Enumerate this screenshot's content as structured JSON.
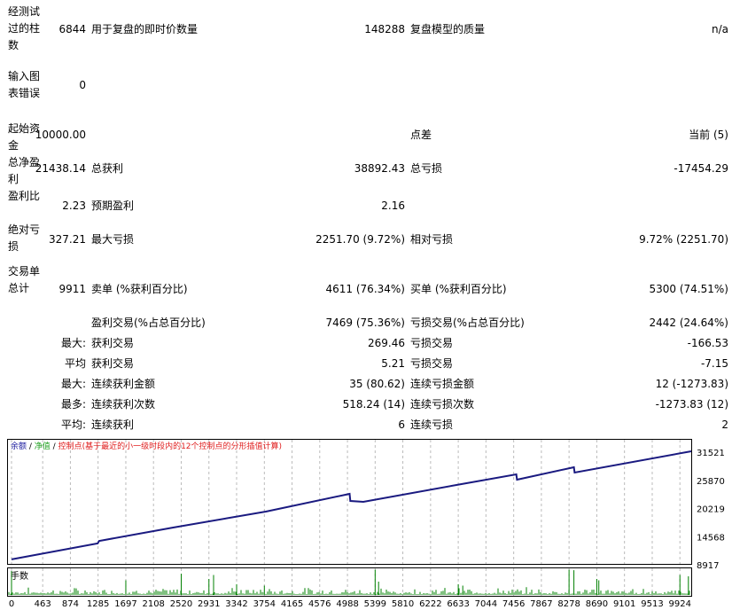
{
  "report": {
    "bars": {
      "label": "经测试过的柱数",
      "value": "6844",
      "l2": "用于复盘的即时价数量",
      "v2": "148288",
      "l3": "复盘模型的质量",
      "v3": "n/a"
    },
    "errors": {
      "label": "输入图表错误",
      "value": "0"
    },
    "deposit": {
      "label": "起始资金",
      "value": "10000.00",
      "l3": "点差",
      "v3": "当前 (5)"
    },
    "net": {
      "label": "总净盈利",
      "value": "21438.14",
      "l2": "总获利",
      "v2": "38892.43",
      "l3": "总亏损",
      "v3": "-17454.29"
    },
    "pf": {
      "label": "盈利比",
      "value": "2.23",
      "l2": "预期盈利",
      "v2": "2.16"
    },
    "dd": {
      "label": "绝对亏损",
      "value": "327.21",
      "l2": "最大亏损",
      "v2": "2251.70 (9.72%)",
      "l3": "相对亏损",
      "v3": "9.72% (2251.70)"
    },
    "trades": {
      "label": "交易单总计",
      "value": "9911",
      "l2": "卖单 (%获利百分比)",
      "v2": "4611 (76.34%)",
      "l3": "买单 (%获利百分比)",
      "v3": "5300 (74.51%)"
    },
    "rows": [
      {
        "p": "",
        "l2": "盈利交易(%占总百分比)",
        "v2": "7469 (75.36%)",
        "l3": "亏损交易(%占总百分比)",
        "v3": "2442 (24.64%)"
      },
      {
        "p": "最大:",
        "l2": "获利交易",
        "v2": "269.46",
        "l3": "亏损交易",
        "v3": "-166.53"
      },
      {
        "p": "平均",
        "l2": "获利交易",
        "v2": "5.21",
        "l3": "亏损交易",
        "v3": "-7.15"
      },
      {
        "p": "最大:",
        "l2": "连续获利金额",
        "v2": "35 (80.62)",
        "l3": "连续亏损金额",
        "v3": "12 (-1273.83)"
      },
      {
        "p": "最多:",
        "l2": "连续获利次数",
        "v2": "518.24 (14)",
        "l3": "连续亏损次数",
        "v3": "-1273.83 (12)"
      },
      {
        "p": "平均:",
        "l2": "连续获利",
        "v2": "6",
        "l3": "连续亏损",
        "v3": "2"
      }
    ]
  },
  "chart_data": {
    "type": "line",
    "legend": {
      "balance": "余额",
      "equity": "净值",
      "control": "控制点(基于最近的小一级时段内的12个控制点的分形插值计算)",
      "sep": " / "
    },
    "colors": {
      "balance": "#1a1a80",
      "legend_balance": "#2020a0",
      "legend_equity": "#20a020",
      "legend_control": "#e02020",
      "volume": "#008000"
    },
    "y_ticks": [
      "31521",
      "25870",
      "20219",
      "14568",
      "8917"
    ],
    "ylim": [
      8917,
      31521
    ],
    "x_ticks": [
      "0",
      "463",
      "874",
      "1285",
      "1697",
      "2108",
      "2520",
      "2931",
      "3342",
      "3754",
      "4165",
      "4576",
      "4988",
      "5399",
      "5810",
      "6222",
      "6633",
      "7044",
      "7456",
      "7867",
      "8278",
      "8690",
      "9101",
      "9513",
      "9924"
    ],
    "balance": [
      [
        0,
        10000
      ],
      [
        1280,
        13200
      ],
      [
        1300,
        13700
      ],
      [
        2400,
        16400
      ],
      [
        3776,
        19600
      ],
      [
        5020,
        23157
      ],
      [
        5030,
        21733
      ],
      [
        5224,
        21555
      ],
      [
        6671,
        25100
      ],
      [
        7495,
        27070
      ],
      [
        7505,
        26000
      ],
      [
        8350,
        28500
      ],
      [
        8360,
        27430
      ],
      [
        10092,
        31700
      ]
    ],
    "volume_label": "手数",
    "volume_spikes": [
      [
        0,
        0.9
      ],
      [
        1697,
        0.55
      ],
      [
        2520,
        0.8
      ],
      [
        2931,
        0.6
      ],
      [
        3000,
        0.75
      ],
      [
        3342,
        0.4
      ],
      [
        3754,
        0.35
      ],
      [
        5399,
        0.95
      ],
      [
        5450,
        0.5
      ],
      [
        6633,
        0.4
      ],
      [
        6700,
        0.35
      ],
      [
        8278,
        0.95
      ],
      [
        8350,
        0.93
      ],
      [
        8690,
        0.6
      ],
      [
        8720,
        0.55
      ],
      [
        9924,
        0.75
      ],
      [
        10050,
        0.7
      ]
    ]
  }
}
